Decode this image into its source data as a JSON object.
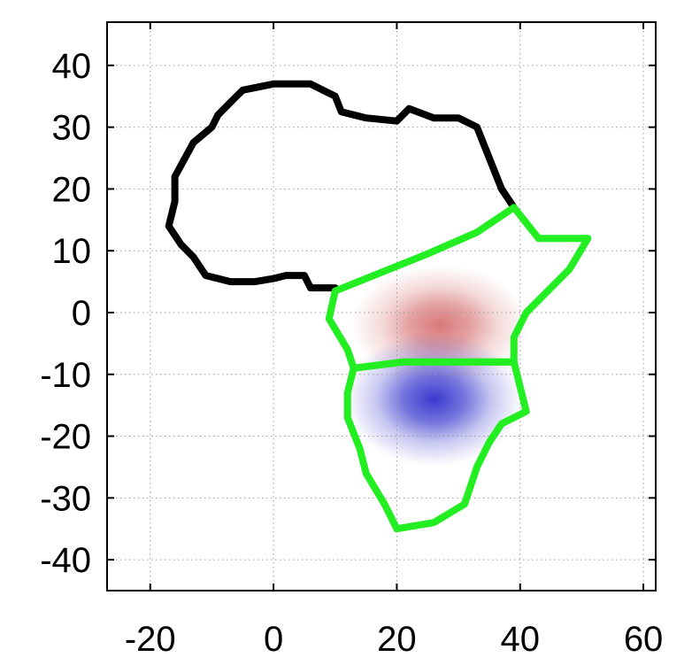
{
  "chart_data": {
    "type": "heatmap",
    "title": "",
    "xlabel": "",
    "ylabel": "",
    "xlim": [
      -27,
      62
    ],
    "ylim": [
      -45,
      47
    ],
    "grid": true,
    "xticks": [
      -20,
      0,
      20,
      40,
      60
    ],
    "yticks": [
      40,
      30,
      20,
      10,
      0,
      -10,
      -20,
      -30,
      -40
    ],
    "xtick_labels": [
      "-20",
      "0",
      "20",
      "40",
      "60"
    ],
    "ytick_labels": [
      "40",
      "30",
      "20",
      "10",
      "0",
      "-10",
      "-20",
      "-30",
      "-40"
    ],
    "blobs": [
      {
        "sign": "positive",
        "color": "#d46a6a",
        "center": [
          27,
          -2
        ],
        "sigma_x": 6,
        "sigma_y": 4,
        "peak": 0.9
      },
      {
        "sign": "negative",
        "color": "#3a3acf",
        "center": [
          26,
          -14
        ],
        "sigma_x": 6,
        "sigma_y": 4.5,
        "peak": 1.0
      }
    ],
    "outlines": [
      {
        "name": "africa-outline",
        "color": "#000000",
        "points": [
          [
            39,
            17
          ],
          [
            37,
            20
          ],
          [
            35,
            25
          ],
          [
            33,
            30
          ],
          [
            30,
            31.5
          ],
          [
            26,
            31.5
          ],
          [
            22,
            33
          ],
          [
            20,
            31
          ],
          [
            15,
            31.5
          ],
          [
            11,
            32.5
          ],
          [
            10,
            35
          ],
          [
            6,
            37
          ],
          [
            0,
            37
          ],
          [
            -5,
            36
          ],
          [
            -6,
            35
          ],
          [
            -9,
            32
          ],
          [
            -10,
            30
          ],
          [
            -13,
            27.5
          ],
          [
            -16,
            22
          ],
          [
            -16,
            18
          ],
          [
            -17,
            14
          ],
          [
            -15,
            11
          ],
          [
            -13,
            9
          ],
          [
            -11,
            6
          ],
          [
            -7,
            5
          ],
          [
            -3,
            5
          ],
          [
            0,
            5.5
          ],
          [
            2,
            6
          ],
          [
            5,
            6
          ],
          [
            6,
            4
          ],
          [
            10,
            4
          ]
        ]
      },
      {
        "name": "region-north",
        "color": "#22ee22",
        "points": [
          [
            10,
            3.5
          ],
          [
            25,
            9.5
          ],
          [
            33,
            13
          ],
          [
            39,
            17
          ],
          [
            43,
            12
          ],
          [
            51,
            12
          ],
          [
            48,
            7
          ],
          [
            44,
            3
          ],
          [
            41,
            0
          ],
          [
            39,
            -4
          ],
          [
            39,
            -8
          ],
          [
            30,
            -8
          ],
          [
            21,
            -8
          ],
          [
            13,
            -9
          ],
          [
            12,
            -6
          ],
          [
            9,
            -1
          ],
          [
            10,
            3.5
          ]
        ]
      },
      {
        "name": "region-south",
        "color": "#22ee22",
        "points": [
          [
            13,
            -9
          ],
          [
            21,
            -8
          ],
          [
            30,
            -8
          ],
          [
            39,
            -8
          ],
          [
            40,
            -12
          ],
          [
            41,
            -16
          ],
          [
            37,
            -18
          ],
          [
            35,
            -21
          ],
          [
            33,
            -25
          ],
          [
            32,
            -28
          ],
          [
            31,
            -31
          ],
          [
            26,
            -34
          ],
          [
            20,
            -35
          ],
          [
            18,
            -31
          ],
          [
            15,
            -26
          ],
          [
            14,
            -22
          ],
          [
            12,
            -17
          ],
          [
            12,
            -13
          ],
          [
            13,
            -9
          ]
        ]
      }
    ]
  },
  "colors": {
    "axis": "#000000",
    "grid": "#9a9a9a",
    "background": "#ffffff"
  }
}
